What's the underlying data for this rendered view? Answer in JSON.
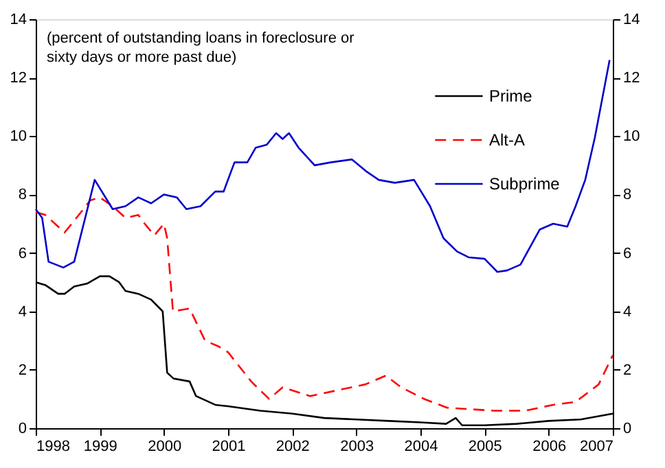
{
  "chart_data": {
    "type": "line",
    "annotations": [
      "(percent of outstanding loans in foreclosure or sixty days or more past due)"
    ],
    "xlim": [
      1998,
      2007
    ],
    "xticks": [
      1998,
      1999,
      2000,
      2001,
      2002,
      2003,
      2004,
      2005,
      2006,
      2007
    ],
    "ylim": [
      0,
      14
    ],
    "yticks": [
      0,
      2,
      4,
      6,
      8,
      10,
      12,
      14
    ],
    "y2lim": [
      0,
      14
    ],
    "y2ticks": [
      0,
      2,
      4,
      6,
      8,
      10,
      12,
      14
    ],
    "grid": false,
    "legend": "top right",
    "marker": "none",
    "series": [
      {
        "name": "Prime",
        "color": "#000000",
        "line_style": "solid",
        "x": [
          1998,
          1998.15,
          1998.35,
          1998.45,
          1998.6,
          1998.8,
          1999.0,
          1999.15,
          1999.3,
          1999.4,
          1999.6,
          1999.8,
          1999.98,
          2000.05,
          2000.15,
          2000.4,
          2000.5,
          2000.8,
          2001.0,
          2001.5,
          2002.0,
          2002.5,
          2003.0,
          2003.5,
          2004.0,
          2004.4,
          2004.55,
          2004.65,
          2005.0,
          2005.5,
          2006.0,
          2006.5,
          2007.0
        ],
        "values": [
          5.0,
          4.9,
          4.6,
          4.6,
          4.85,
          4.95,
          5.2,
          5.2,
          5.0,
          4.7,
          4.6,
          4.4,
          4.0,
          1.9,
          1.7,
          1.6,
          1.1,
          0.8,
          0.75,
          0.6,
          0.5,
          0.35,
          0.3,
          0.25,
          0.2,
          0.15,
          0.35,
          0.1,
          0.1,
          0.15,
          0.25,
          0.3,
          0.5
        ]
      },
      {
        "name": "Alt-A",
        "color": "#ff0000",
        "line_style": "dashed",
        "x": [
          1998,
          1998.15,
          1998.3,
          1998.45,
          1998.6,
          1998.85,
          1999.0,
          1999.2,
          1999.4,
          1999.6,
          1999.7,
          1999.85,
          2000.0,
          2000.05,
          2000.14,
          2000.4,
          2000.64,
          2000.85,
          2001.0,
          2001.36,
          2001.64,
          2001.85,
          2002.28,
          2002.71,
          2003.14,
          2003.46,
          2003.7,
          2004.06,
          2004.42,
          2005.14,
          2005.64,
          2006.07,
          2006.42,
          2006.78,
          2007.0
        ],
        "values": [
          7.4,
          7.3,
          7.0,
          6.7,
          7.1,
          7.8,
          7.9,
          7.6,
          7.2,
          7.3,
          7.0,
          6.6,
          7.0,
          6.5,
          4.0,
          4.1,
          3.0,
          2.8,
          2.6,
          1.6,
          1.0,
          1.4,
          1.1,
          1.3,
          1.5,
          1.8,
          1.4,
          1.0,
          0.7,
          0.6,
          0.6,
          0.8,
          0.9,
          1.5,
          2.5
        ]
      },
      {
        "name": "Subprime",
        "color": "#0000cc",
        "line_style": "solid",
        "x": [
          1998,
          1998.1,
          1998.2,
          1998.43,
          1998.6,
          1998.92,
          1999.2,
          1999.4,
          1999.6,
          1999.8,
          2000.0,
          2000.2,
          2000.35,
          2000.57,
          2000.8,
          2000.93,
          2001.1,
          2001.3,
          2001.43,
          2001.6,
          2001.75,
          2001.85,
          2001.95,
          2002.1,
          2002.35,
          2002.6,
          2002.93,
          2003.15,
          2003.35,
          2003.6,
          2003.9,
          2004.15,
          2004.36,
          2004.57,
          2004.75,
          2005.0,
          2005.2,
          2005.35,
          2005.56,
          2005.86,
          2006.07,
          2006.29,
          2006.42,
          2006.57,
          2006.72,
          2006.95
        ],
        "values": [
          7.5,
          7.2,
          5.7,
          5.5,
          5.7,
          8.5,
          7.5,
          7.6,
          7.9,
          7.7,
          8.0,
          7.9,
          7.5,
          7.6,
          8.1,
          8.1,
          9.1,
          9.1,
          9.6,
          9.7,
          10.1,
          9.9,
          10.1,
          9.6,
          9.0,
          9.1,
          9.2,
          8.8,
          8.5,
          8.4,
          8.5,
          7.6,
          6.5,
          6.05,
          5.85,
          5.8,
          5.35,
          5.4,
          5.6,
          6.8,
          7.0,
          6.9,
          7.6,
          8.5,
          9.95,
          12.6
        ]
      }
    ]
  }
}
